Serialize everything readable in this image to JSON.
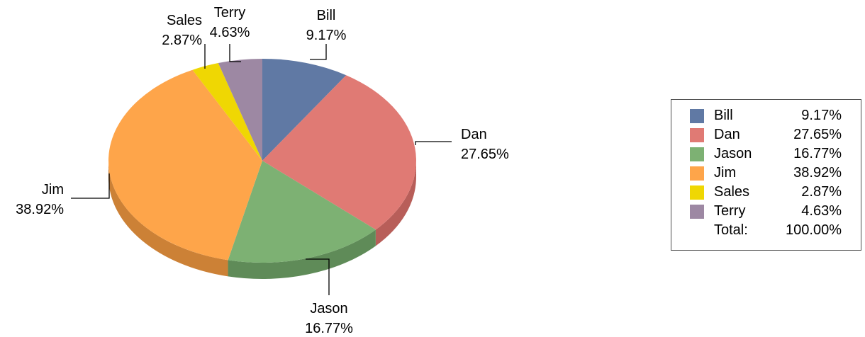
{
  "chart_data": {
    "type": "pie",
    "style": "3d",
    "slices": [
      {
        "label": "Bill",
        "value": 9.17,
        "value_label": "9.17%",
        "color": "#6079a4",
        "side_color": "#4f6690"
      },
      {
        "label": "Dan",
        "value": 27.65,
        "value_label": "27.65%",
        "color": "#e07a74",
        "side_color": "#b85e59"
      },
      {
        "label": "Jason",
        "value": 16.77,
        "value_label": "16.77%",
        "color": "#7db173",
        "side_color": "#5f8b58"
      },
      {
        "label": "Jim",
        "value": 38.92,
        "value_label": "38.92%",
        "color": "#fea54a",
        "side_color": "#cc8136"
      },
      {
        "label": "Sales",
        "value": 2.87,
        "value_label": "2.87%",
        "color": "#efd703",
        "side_color": "#c0ab02"
      },
      {
        "label": "Terry",
        "value": 4.63,
        "value_label": "4.63%",
        "color": "#9d88a3",
        "side_color": "#7d6a82"
      }
    ],
    "legend": {
      "placement": "right",
      "total_label": "Total:",
      "total_value": "100.00%"
    }
  }
}
